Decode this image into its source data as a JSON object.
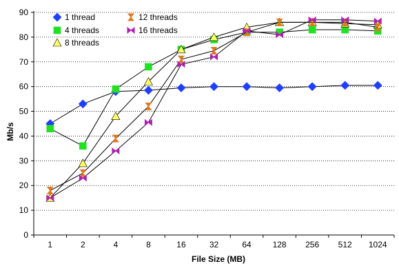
{
  "chart_data": {
    "type": "line",
    "xlabel": "File Size (MB)",
    "ylabel": "Mb/s",
    "categories": [
      "1",
      "2",
      "4",
      "8",
      "16",
      "32",
      "64",
      "128",
      "256",
      "512",
      "1024"
    ],
    "ylim": [
      0,
      90
    ],
    "yticks": [
      0,
      10,
      20,
      30,
      40,
      50,
      60,
      70,
      80,
      90
    ],
    "grid": true,
    "legend_position": "top-left",
    "series": [
      {
        "name": "1 thread",
        "marker": "diamond",
        "color": "#1f3fff",
        "values": [
          45,
          53,
          58,
          58.5,
          59.5,
          60,
          60,
          59.5,
          60,
          60.5,
          60.5
        ]
      },
      {
        "name": "4 threads",
        "marker": "square",
        "color": "#22e022",
        "values": [
          43,
          36,
          59,
          68,
          75,
          79,
          82,
          82,
          83,
          83,
          82.5
        ]
      },
      {
        "name": "8 threads",
        "marker": "triangle",
        "color": "#ffff66",
        "values": [
          15,
          29,
          48,
          62,
          75,
          80,
          84,
          86,
          86,
          85.5,
          85
        ]
      },
      {
        "name": "12 threads",
        "marker": "hourglass",
        "color": "#e07820",
        "values": [
          18,
          25,
          39,
          52,
          71,
          74.5,
          82,
          86,
          86,
          86,
          84
        ]
      },
      {
        "name": "16 threads",
        "marker": "bowtie",
        "color": "#b020b0",
        "values": [
          15,
          23,
          34,
          45.5,
          69,
          72,
          82.5,
          81,
          87,
          87,
          86.5
        ]
      }
    ]
  }
}
